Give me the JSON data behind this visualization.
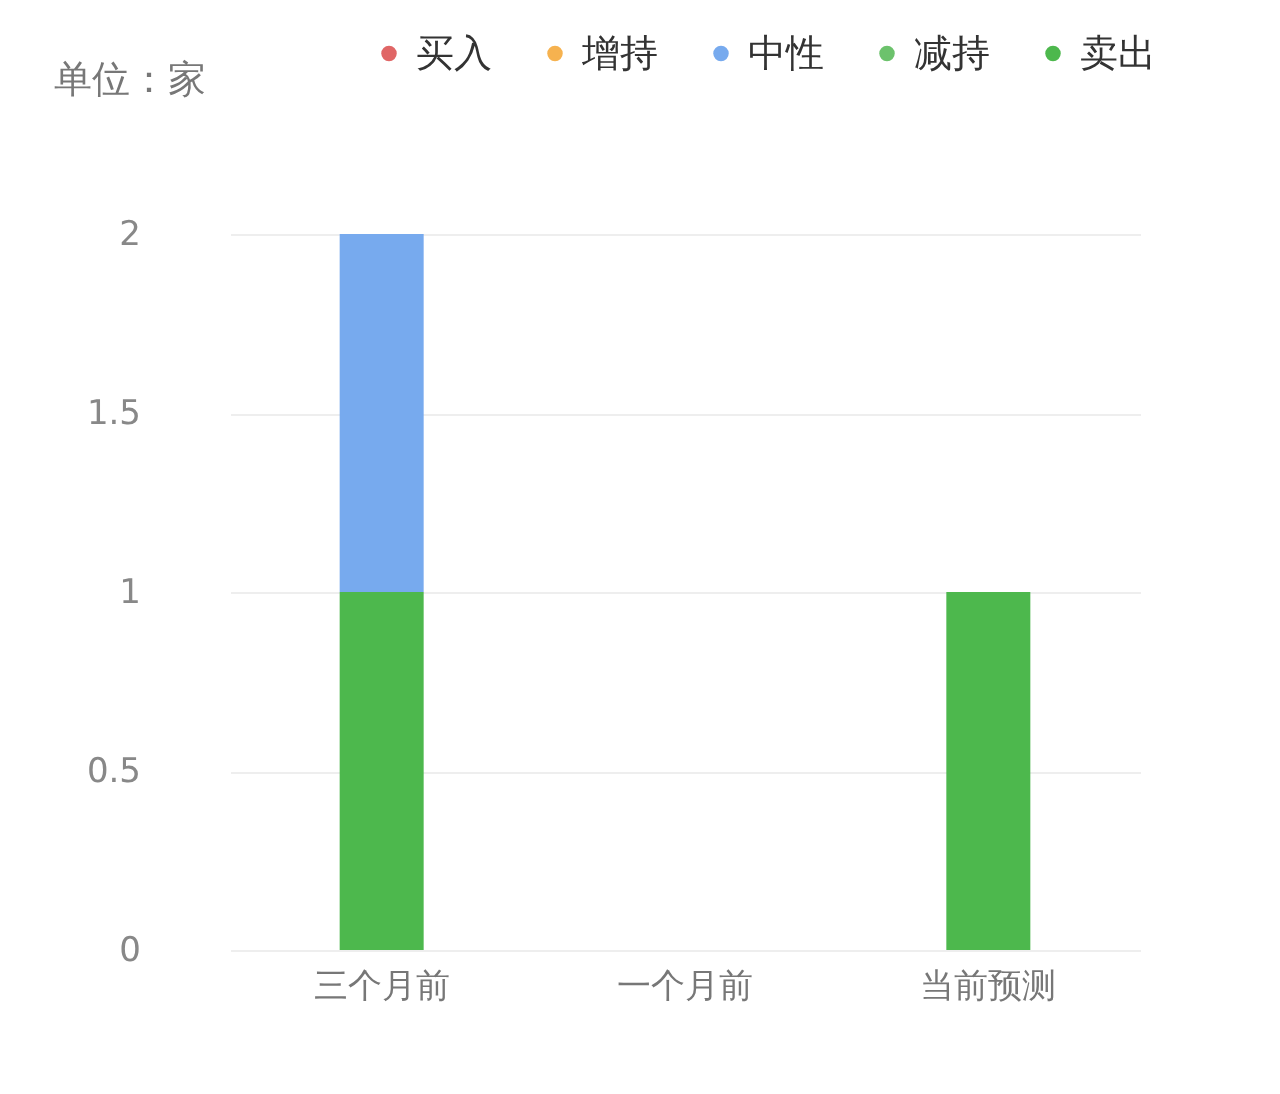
{
  "chart_data": {
    "type": "bar",
    "stacked": true,
    "annotations": [
      "单位：家"
    ],
    "categories": [
      "三个月前",
      "一个月前",
      "当前预测"
    ],
    "series": [
      {
        "name": "卖出",
        "color": "#4db84d",
        "values": [
          1,
          0,
          1
        ]
      },
      {
        "name": "减持",
        "color": "#6cc26c",
        "values": [
          0,
          0,
          0
        ]
      },
      {
        "name": "中性",
        "color": "#77aaee",
        "values": [
          1,
          0,
          0
        ]
      },
      {
        "name": "增持",
        "color": "#f6b24f",
        "values": [
          0,
          0,
          0
        ]
      },
      {
        "name": "买入",
        "color": "#e06666",
        "values": [
          0,
          0,
          0
        ]
      }
    ],
    "ylim": [
      0,
      2
    ],
    "yticks": [
      0,
      0.5,
      1,
      1.5,
      2
    ],
    "grid": "y",
    "legend": "top right"
  }
}
